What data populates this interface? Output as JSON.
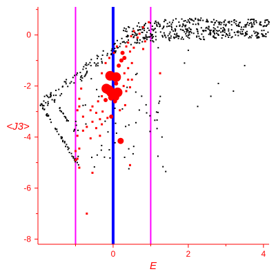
{
  "chart_data": {
    "type": "scatter",
    "xlabel": "E",
    "ylabel": "<J3>",
    "xlim": [
      -2.0,
      4.15
    ],
    "ylim": [
      -8.2,
      1.1
    ],
    "x_ticks": [
      0,
      2,
      4
    ],
    "y_ticks": [
      -8,
      -6,
      -4,
      -2,
      0
    ],
    "x_tick_labels": [
      "0",
      "2",
      "4"
    ],
    "y_tick_labels": [
      "-8",
      "-6",
      "-4",
      "-2",
      "0"
    ],
    "grid": false,
    "colors": {
      "axis": "#ff0000",
      "labels": "#ff0000",
      "black_points": "#000000",
      "red_points": "#ff0000",
      "vertical_line_center": "#0000ff",
      "vertical_lines_side": "#ff00ff"
    },
    "vertical_lines": [
      {
        "x": -1,
        "color": "#ff00ff"
      },
      {
        "x": 0,
        "color": "#0000ff"
      },
      {
        "x": 1,
        "color": "#ff00ff"
      }
    ],
    "red_points": [
      {
        "x": -0.08,
        "y": -1.6,
        "size": 3
      },
      {
        "x": 0.08,
        "y": -1.65,
        "size": 3
      },
      {
        "x": -0.18,
        "y": -2.1,
        "size": 3
      },
      {
        "x": -0.12,
        "y": -2.15,
        "size": 3
      },
      {
        "x": -0.05,
        "y": -2.25,
        "size": 3
      },
      {
        "x": 0.02,
        "y": -2.3,
        "size": 3
      },
      {
        "x": 0.12,
        "y": -2.25,
        "size": 3
      },
      {
        "x": 0.08,
        "y": -2.45,
        "size": 2
      },
      {
        "x": -0.05,
        "y": -2.45,
        "size": 2
      },
      {
        "x": -0.2,
        "y": -2.55,
        "size": 1
      },
      {
        "x": 0.05,
        "y": -2.6,
        "size": 1
      },
      {
        "x": 0.2,
        "y": -4.15,
        "size": 2
      },
      {
        "x": -0.05,
        "y": -3.2,
        "size": 1
      },
      {
        "x": 0.15,
        "y": -1.2,
        "size": 1
      },
      {
        "x": 0.22,
        "y": -1.0,
        "size": 1
      },
      {
        "x": 0.3,
        "y": -0.9,
        "size": 1
      },
      {
        "x": 0.25,
        "y": -0.7,
        "size": 1
      },
      {
        "x": 0.08,
        "y": -1.9,
        "size": 1
      },
      {
        "x": -0.3,
        "y": -1.5,
        "size": 0
      },
      {
        "x": -0.2,
        "y": -1.1,
        "size": 0
      },
      {
        "x": -0.1,
        "y": -0.9,
        "size": 0
      },
      {
        "x": 0.02,
        "y": -0.7,
        "size": 0
      },
      {
        "x": 0.1,
        "y": -0.45,
        "size": 0
      },
      {
        "x": 0.35,
        "y": -0.45,
        "size": 0
      },
      {
        "x": 0.45,
        "y": -0.65,
        "size": 0
      },
      {
        "x": 0.55,
        "y": -0.5,
        "size": 0
      },
      {
        "x": 0.4,
        "y": -0.3,
        "size": 0
      },
      {
        "x": 0.48,
        "y": -0.05,
        "size": 0
      },
      {
        "x": 0.65,
        "y": -0.1,
        "size": 0
      },
      {
        "x": 0.7,
        "y": 0.05,
        "size": 0
      },
      {
        "x": 0.55,
        "y": 0.15,
        "size": 0
      },
      {
        "x": 0.8,
        "y": 0.3,
        "size": 0
      },
      {
        "x": 0.95,
        "y": 0.5,
        "size": 0
      },
      {
        "x": 0.3,
        "y": -1.5,
        "size": 0
      },
      {
        "x": 0.4,
        "y": -1.3,
        "size": 0
      },
      {
        "x": 0.5,
        "y": -1.1,
        "size": 0
      },
      {
        "x": 0.4,
        "y": -1.75,
        "size": 0
      },
      {
        "x": 0.28,
        "y": -2.0,
        "size": 0
      },
      {
        "x": 0.35,
        "y": -2.2,
        "size": 0
      },
      {
        "x": 0.45,
        "y": -2.05,
        "size": 0
      },
      {
        "x": 0.5,
        "y": -1.75,
        "size": 0
      },
      {
        "x": 0.32,
        "y": -2.75,
        "size": 0
      },
      {
        "x": 0.18,
        "y": -2.95,
        "size": 0
      },
      {
        "x": -0.3,
        "y": -2.4,
        "size": 0
      },
      {
        "x": -0.4,
        "y": -2.6,
        "size": 0
      },
      {
        "x": -0.55,
        "y": -2.8,
        "size": 0
      },
      {
        "x": -0.6,
        "y": -2.95,
        "size": 0
      },
      {
        "x": -0.45,
        "y": -3.05,
        "size": 0
      },
      {
        "x": -0.35,
        "y": -3.3,
        "size": 0
      },
      {
        "x": -0.55,
        "y": -3.4,
        "size": 0
      },
      {
        "x": -0.7,
        "y": -3.6,
        "size": 0
      },
      {
        "x": -0.45,
        "y": -3.65,
        "size": 0
      },
      {
        "x": -0.3,
        "y": -3.5,
        "size": 0
      },
      {
        "x": -0.15,
        "y": -3.25,
        "size": 0
      },
      {
        "x": -0.35,
        "y": -3.95,
        "size": 0
      },
      {
        "x": -0.28,
        "y": -3.0,
        "size": 0
      },
      {
        "x": -0.8,
        "y": -3.75,
        "size": 0
      },
      {
        "x": -0.6,
        "y": -4.05,
        "size": 0
      },
      {
        "x": -1.0,
        "y": -4.9,
        "size": 0
      },
      {
        "x": -0.55,
        "y": -5.4,
        "size": 0
      },
      {
        "x": -0.9,
        "y": -5.2,
        "size": 0
      },
      {
        "x": 0.85,
        "y": -0.25,
        "size": 0
      },
      {
        "x": 0.8,
        "y": -0.55,
        "size": 0
      },
      {
        "x": 1.25,
        "y": -1.5,
        "size": 0
      },
      {
        "x": 0.45,
        "y": -5.1,
        "size": 0
      },
      {
        "x": -0.9,
        "y": -2.8,
        "size": 0
      },
      {
        "x": -0.8,
        "y": -3.2,
        "size": 0
      },
      {
        "x": -0.95,
        "y": -3.95,
        "size": 0
      },
      {
        "x": -1.0,
        "y": -4.55,
        "size": 0
      },
      {
        "x": -0.9,
        "y": -4.45,
        "size": 0
      },
      {
        "x": -0.95,
        "y": -4.85,
        "size": 0
      },
      {
        "x": -0.9,
        "y": -2.5,
        "size": 0
      },
      {
        "x": -0.95,
        "y": -2.95,
        "size": 0
      },
      {
        "x": -0.85,
        "y": -2.1,
        "size": 0
      },
      {
        "x": -0.7,
        "y": -7.0,
        "size": 0
      }
    ]
  }
}
